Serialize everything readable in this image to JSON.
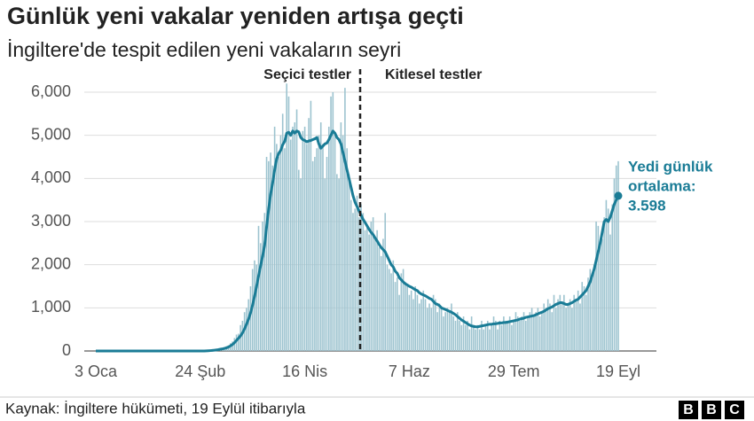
{
  "chart_data": {
    "type": "bar+line",
    "title": "Günlük yeni vakalar yeniden artışa geçti",
    "subtitle": "İngiltere'de tespit edilen yeni vakaların seyri",
    "source": "Kaynak: İngiltere hükümeti, 19 Eylül itibarıyla",
    "phase_labels": [
      "Seçici testler",
      "Kitlesel testler"
    ],
    "annotation": [
      "Yedi günlük",
      "ortalama:",
      "3.598"
    ],
    "categories": [
      "3 Oca",
      null,
      null,
      null,
      null,
      null,
      null,
      null,
      null,
      null,
      null,
      null,
      null,
      null,
      null,
      null,
      null,
      null,
      null,
      null,
      null,
      null,
      null,
      null,
      null,
      null,
      null,
      null,
      null,
      null,
      null,
      null,
      null,
      null,
      null,
      null,
      null,
      null,
      null,
      null,
      null,
      null,
      null,
      null,
      null,
      null,
      null,
      null,
      null,
      null,
      null,
      null,
      "24 Şub",
      null,
      null,
      null,
      null,
      null,
      null,
      null,
      null,
      null,
      null,
      null,
      null,
      null,
      null,
      null,
      null,
      null,
      null,
      null,
      null,
      null,
      null,
      null,
      null,
      null,
      null,
      null,
      null,
      null,
      null,
      null,
      null,
      null,
      null,
      null,
      null,
      null,
      null,
      null,
      null,
      null,
      null,
      null,
      null,
      null,
      null,
      null,
      null,
      null,
      null,
      null,
      "16 Nis",
      null,
      null,
      null,
      null,
      null,
      null,
      null,
      null,
      null,
      null,
      null,
      null,
      null,
      null,
      null,
      null,
      null,
      null,
      null,
      null,
      null,
      null,
      null,
      null,
      null,
      null,
      null,
      null,
      null,
      null,
      null,
      null,
      null,
      null,
      null,
      null,
      null,
      null,
      null,
      null,
      null,
      null,
      null,
      null,
      null,
      null,
      null,
      null,
      null,
      null,
      null,
      "7 Haz",
      null,
      null,
      null,
      null,
      null,
      null,
      null,
      null,
      null,
      null,
      null,
      null,
      null,
      null,
      null,
      null,
      null,
      null,
      null,
      null,
      null,
      null,
      null,
      null,
      null,
      null,
      null,
      null,
      null,
      null,
      null,
      null,
      null,
      null,
      null,
      null,
      null,
      null,
      null,
      null,
      null,
      null,
      null,
      null,
      null,
      null,
      null,
      null,
      null,
      null,
      null,
      "29 Tem",
      null,
      null,
      null,
      null,
      null,
      null,
      null,
      null,
      null,
      null,
      null,
      null,
      null,
      null,
      null,
      null,
      null,
      null,
      null,
      null,
      null,
      null,
      null,
      null,
      null,
      null,
      null,
      null,
      null,
      null,
      null,
      null,
      null,
      null,
      null,
      null,
      null,
      null,
      null,
      null,
      null,
      null,
      null,
      null,
      null,
      null,
      null,
      null,
      null,
      null,
      null,
      "19 Eyl"
    ],
    "series": [
      {
        "kind": "bar",
        "color": "#9cc3cf",
        "values": [
          0,
          0,
          0,
          0,
          0,
          0,
          0,
          0,
          0,
          0,
          0,
          0,
          0,
          0,
          0,
          0,
          0,
          0,
          0,
          0,
          0,
          0,
          0,
          0,
          0,
          0,
          0,
          0,
          0,
          0,
          0,
          0,
          1,
          0,
          0,
          2,
          0,
          3,
          0,
          0,
          1,
          0,
          0,
          0,
          0,
          0,
          0,
          0,
          0,
          0,
          1,
          0,
          2,
          5,
          3,
          8,
          10,
          15,
          20,
          25,
          35,
          45,
          60,
          50,
          85,
          110,
          130,
          180,
          220,
          300,
          380,
          400,
          600,
          700,
          900,
          1000,
          1200,
          1500,
          1900,
          2100,
          2000,
          2900,
          2500,
          3000,
          3200,
          4500,
          4400,
          4600,
          4300,
          5200,
          4800,
          4500,
          5000,
          5500,
          4700,
          6200,
          5900,
          4900,
          5200,
          5300,
          5600,
          4200,
          4000,
          5100,
          5200,
          4800,
          5400,
          5800,
          4400,
          4500,
          4700,
          5000,
          5300,
          4800,
          4000,
          4500,
          5200,
          5900,
          6000,
          5000,
          4100,
          4000,
          5300,
          5000,
          6100,
          4700,
          4100,
          3500,
          3200,
          3300,
          3600,
          3100,
          3400,
          3200,
          2800,
          2900,
          2700,
          3000,
          3100,
          2600,
          2800,
          2400,
          2200,
          2600,
          3200,
          2000,
          1900,
          1800,
          2100,
          1600,
          1700,
          1300,
          1800,
          1900,
          1600,
          1500,
          1300,
          1400,
          1200,
          1500,
          1300,
          1100,
          1200,
          1400,
          1200,
          1000,
          1100,
          1000,
          1300,
          1200,
          900,
          1100,
          1000,
          800,
          900,
          1000,
          900,
          1100,
          800,
          700,
          900,
          700,
          600,
          800,
          600,
          700,
          500,
          800,
          600,
          500,
          600,
          500,
          700,
          500,
          600,
          700,
          500,
          600,
          800,
          700,
          500,
          700,
          600,
          800,
          700,
          700,
          800,
          600,
          700,
          900,
          800,
          700,
          800,
          900,
          700,
          800,
          900,
          1000,
          800,
          900,
          1000,
          800,
          900,
          1100,
          1000,
          1200,
          1100,
          900,
          1300,
          1000,
          1200,
          1300,
          1100,
          1300,
          1000,
          1100,
          1200,
          1000,
          1300,
          1200,
          1400,
          1100,
          1600,
          1500,
          1300,
          1700,
          1900,
          1800,
          2000,
          3000,
          2900,
          2500,
          2600,
          3100,
          3500,
          3300,
          2700,
          3400,
          4000,
          4300,
          4400
        ]
      },
      {
        "kind": "line",
        "color": "#1a7c96",
        "values": [
          0,
          0,
          0,
          0,
          0,
          0,
          0,
          0,
          0,
          0,
          0,
          0,
          0,
          0,
          0,
          0,
          0,
          0,
          0,
          0,
          0,
          0,
          0,
          0,
          0,
          0,
          0,
          0,
          0,
          0,
          0,
          0,
          0,
          0,
          0,
          0,
          0,
          0,
          0,
          0,
          0,
          0,
          0,
          0,
          0,
          0,
          0,
          0,
          0,
          0,
          0,
          0,
          0,
          0,
          0,
          3,
          6,
          9,
          13,
          17,
          24,
          31,
          41,
          48,
          60,
          73,
          91,
          118,
          150,
          193,
          245,
          295,
          350,
          420,
          510,
          620,
          740,
          880,
          1060,
          1270,
          1500,
          1740,
          1970,
          2200,
          2450,
          2880,
          3280,
          3640,
          3900,
          4200,
          4450,
          4580,
          4650,
          4780,
          4860,
          5050,
          5070,
          5000,
          5100,
          5050,
          5100,
          5080,
          4950,
          4900,
          4880,
          4850,
          4870,
          4880,
          4900,
          4920,
          4950,
          4800,
          4700,
          4750,
          4800,
          4820,
          4900,
          5000,
          5100,
          5050,
          4950,
          4900,
          4800,
          4600,
          4400,
          4200,
          4000,
          3800,
          3600,
          3450,
          3350,
          3250,
          3150,
          3050,
          2980,
          2900,
          2820,
          2750,
          2700,
          2620,
          2550,
          2470,
          2400,
          2350,
          2300,
          2200,
          2100,
          2000,
          1950,
          1850,
          1800,
          1700,
          1650,
          1600,
          1560,
          1530,
          1500,
          1480,
          1450,
          1420,
          1400,
          1350,
          1320,
          1300,
          1280,
          1250,
          1220,
          1200,
          1150,
          1100,
          1080,
          1050,
          1000,
          980,
          960,
          940,
          920,
          900,
          870,
          840,
          800,
          760,
          720,
          690,
          660,
          630,
          600,
          580,
          570,
          560,
          560,
          570,
          580,
          590,
          600,
          610,
          620,
          620,
          630,
          630,
          640,
          650,
          650,
          660,
          660,
          670,
          680,
          690,
          700,
          710,
          720,
          740,
          750,
          760,
          780,
          790,
          800,
          810,
          820,
          840,
          860,
          880,
          900,
          920,
          950,
          980,
          1000,
          1020,
          1050,
          1080,
          1100,
          1120,
          1120,
          1100,
          1080,
          1080,
          1100,
          1120,
          1150,
          1180,
          1200,
          1250,
          1300,
          1350,
          1400,
          1500,
          1600,
          1750,
          1900,
          2100,
          2300,
          2500,
          2750,
          3000,
          3050,
          3000,
          3100,
          3250,
          3400,
          3500,
          3598
        ]
      }
    ],
    "ylim": [
      0,
      6000
    ],
    "yticks": [
      0,
      {
        "value": 1000,
        "label": "1,000"
      },
      {
        "value": 2000,
        "label": "2,000"
      },
      {
        "value": 3000,
        "label": "3,000"
      },
      {
        "value": 4000,
        "label": "4,000"
      },
      {
        "value": 5000,
        "label": "5,000"
      },
      {
        "value": 6000,
        "label": "6,000"
      }
    ],
    "grid": true
  }
}
